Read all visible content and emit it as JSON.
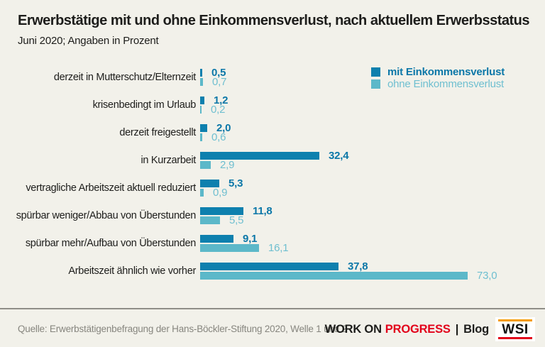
{
  "page": {
    "background": "#f2f1ea"
  },
  "header": {
    "title": "Erwerbstätige mit und ohne Einkommensverlust, nach aktuellem Erwerbsstatus",
    "subtitle": "Juni 2020; Angaben in Prozent"
  },
  "legend": {
    "items": [
      {
        "label": "mit Einkommensverlust",
        "color": "#0e80ae",
        "text_color": "#0b77a8"
      },
      {
        "label": "ohne Einkommensverlust",
        "color": "#5cb8c9",
        "text_color": "#6fbfd0"
      }
    ]
  },
  "chart_data": {
    "type": "bar",
    "orientation": "horizontal",
    "title": "Erwerbstätige mit und ohne Einkommensverlust, nach aktuellem Erwerbsstatus",
    "subtitle": "Juni 2020; Angaben in Prozent",
    "value_unit": "Prozent",
    "xlim": [
      0,
      80
    ],
    "grid": false,
    "legend_position": "top-right",
    "categories": [
      "derzeit in Mutterschutz/Elternzeit",
      "krisenbedingt im Urlaub",
      "derzeit freigestellt",
      "in Kurzarbeit",
      "vertragliche Arbeitszeit aktuell reduziert",
      "spürbar weniger/Abbau von Überstunden",
      "spürbar mehr/Aufbau von Überstunden",
      "Arbeitszeit ähnlich wie vorher"
    ],
    "series": [
      {
        "name": "mit Einkommensverlust",
        "color": "#0e80ae",
        "values": [
          0.5,
          1.2,
          2.0,
          32.4,
          5.3,
          11.8,
          9.1,
          37.8
        ],
        "value_labels": [
          "0,5",
          "1,2",
          "2,0",
          "32,4",
          "5,3",
          "11,8",
          "9,1",
          "37,8"
        ]
      },
      {
        "name": "ohne Einkommensverlust",
        "color": "#5cb8c9",
        "values": [
          0.7,
          0.2,
          0.6,
          2.9,
          0.9,
          5.5,
          16.1,
          73.0
        ],
        "value_labels": [
          "0,7",
          "0,2",
          "0,6",
          "2,9",
          "0,9",
          "5,5",
          "16,1",
          "73,0"
        ]
      }
    ]
  },
  "footer": {
    "source": "Quelle: Erwerbstätigenbefragung der Hans-Böckler-Stiftung 2020, Welle 1 und 2",
    "brand": {
      "work_on": "WORK ON",
      "progress": "PROGRESS",
      "separator": "|",
      "blog": "Blog",
      "logo": "WSI"
    },
    "colors": {
      "progress_red": "#e2001a",
      "logo_orange": "#f59b00",
      "logo_red": "#e2001a"
    }
  }
}
